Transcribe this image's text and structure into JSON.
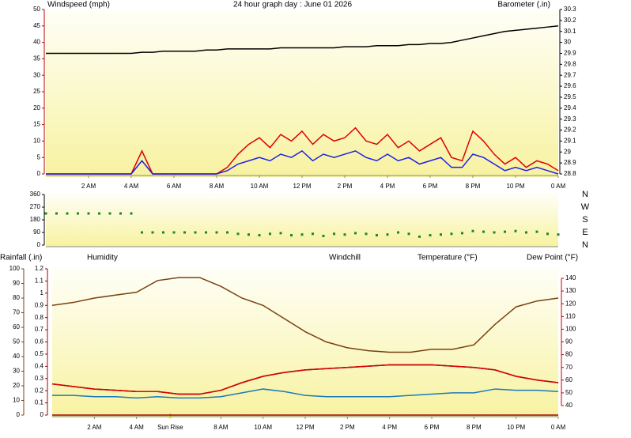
{
  "chart_data": [
    {
      "type": "line",
      "title": "24 hour graph day : June 01 2026",
      "xlim": [
        0,
        24
      ],
      "xticks": [
        {
          "value": 2,
          "label": "2 AM"
        },
        {
          "value": 4,
          "label": "4 AM"
        },
        {
          "value": 6,
          "label": "6 AM"
        },
        {
          "value": 8,
          "label": "8 AM"
        },
        {
          "value": 10,
          "label": "10 AM"
        },
        {
          "value": 12,
          "label": "12 PM"
        },
        {
          "value": 14,
          "label": "2 PM"
        },
        {
          "value": 16,
          "label": "4 PM"
        },
        {
          "value": 18,
          "label": "6 PM"
        },
        {
          "value": 20,
          "label": "8 PM"
        },
        {
          "value": 22,
          "label": "10 PM"
        },
        {
          "value": 24,
          "label": "0 AM"
        }
      ],
      "ylim": [
        0,
        50
      ],
      "yticks": [
        0,
        5,
        10,
        15,
        20,
        25,
        30,
        35,
        40,
        45,
        50
      ],
      "y2lim": [
        28.8,
        30.3
      ],
      "y2ticks": [
        28.8,
        28.9,
        29,
        29.1,
        29.2,
        29.3,
        29.4,
        29.5,
        29.6,
        29.7,
        29.8,
        29.9,
        30,
        30.1,
        30.2,
        30.3
      ],
      "x": [
        0,
        0.5,
        1,
        1.5,
        2,
        2.5,
        3,
        3.5,
        4,
        4.5,
        5,
        5.5,
        6,
        6.5,
        7,
        7.5,
        8,
        8.5,
        9,
        9.5,
        10,
        10.5,
        11,
        11.5,
        12,
        12.5,
        13,
        13.5,
        14,
        14.5,
        15,
        15.5,
        16,
        16.5,
        17,
        17.5,
        18,
        18.5,
        19,
        19.5,
        20,
        20.5,
        21,
        21.5,
        22,
        22.5,
        23,
        23.5,
        24
      ],
      "series": [
        {
          "name": "Windspeed (mph)",
          "color": "#e00000",
          "values": [
            0,
            0,
            0,
            0,
            0,
            0,
            0,
            0,
            0,
            7,
            0,
            0,
            0,
            0,
            0,
            0,
            0,
            2,
            6,
            9,
            11,
            8,
            12,
            10,
            13,
            9,
            12,
            10,
            11,
            14,
            10,
            9,
            12,
            8,
            10,
            7,
            9,
            11,
            5,
            4,
            13,
            10,
            6,
            3,
            5,
            2,
            4,
            3,
            1
          ]
        },
        {
          "color": "#2020e0",
          "values": [
            0,
            0,
            0,
            0,
            0,
            0,
            0,
            0,
            0,
            4,
            0,
            0,
            0,
            0,
            0,
            0,
            0,
            1,
            3,
            4,
            5,
            4,
            6,
            5,
            7,
            4,
            6,
            5,
            6,
            7,
            5,
            4,
            6,
            4,
            5,
            3,
            4,
            5,
            2,
            2,
            6,
            5,
            3,
            1,
            2,
            1,
            2,
            1,
            0
          ]
        },
        {
          "name": "Barometer (.in)",
          "color": "#000000",
          "axis": "y2",
          "values": [
            29.9,
            29.9,
            29.9,
            29.9,
            29.9,
            29.9,
            29.9,
            29.9,
            29.9,
            29.91,
            29.91,
            29.92,
            29.92,
            29.92,
            29.92,
            29.93,
            29.93,
            29.94,
            29.94,
            29.94,
            29.94,
            29.94,
            29.95,
            29.95,
            29.95,
            29.95,
            29.95,
            29.95,
            29.96,
            29.96,
            29.96,
            29.97,
            29.97,
            29.97,
            29.98,
            29.98,
            29.99,
            29.99,
            30.0,
            30.02,
            30.04,
            30.06,
            30.08,
            30.1,
            30.11,
            30.12,
            30.13,
            30.14,
            30.15
          ]
        }
      ]
    },
    {
      "type": "scatter",
      "xlim": [
        0,
        24
      ],
      "ylim": [
        0,
        360
      ],
      "yticks": [
        0,
        90,
        180,
        270,
        360
      ],
      "y2lim": [
        0,
        360
      ],
      "y2ticks": [
        {
          "value": 0,
          "label": "N"
        },
        {
          "value": 90,
          "label": "E"
        },
        {
          "value": 180,
          "label": "S"
        },
        {
          "value": 270,
          "label": "W"
        },
        {
          "value": 360,
          "label": "N"
        }
      ],
      "x": [
        0,
        0.5,
        1,
        1.5,
        2,
        2.5,
        3,
        3.5,
        4,
        4.5,
        5,
        5.5,
        6,
        6.5,
        7,
        7.5,
        8,
        8.5,
        9,
        9.5,
        10,
        10.5,
        11,
        11.5,
        12,
        12.5,
        13,
        13.5,
        14,
        14.5,
        15,
        15.5,
        16,
        16.5,
        17,
        17.5,
        18,
        18.5,
        19,
        19.5,
        20,
        20.5,
        21,
        21.5,
        22,
        22.5,
        23,
        23.5,
        24
      ],
      "series": [
        {
          "color": "#1a8a1a",
          "values": [
            225,
            225,
            225,
            225,
            225,
            225,
            225,
            225,
            225,
            90,
            90,
            90,
            90,
            90,
            90,
            90,
            90,
            90,
            80,
            75,
            70,
            80,
            85,
            70,
            75,
            80,
            65,
            80,
            75,
            85,
            80,
            70,
            75,
            90,
            80,
            60,
            70,
            75,
            80,
            85,
            100,
            95,
            90,
            95,
            100,
            90,
            95,
            80,
            75
          ]
        }
      ]
    },
    {
      "type": "line",
      "xlim": [
        0,
        24
      ],
      "xticks": [
        {
          "value": 2,
          "label": "2 AM"
        },
        {
          "value": 4,
          "label": "4 AM"
        },
        {
          "value": 8,
          "label": "8 AM"
        },
        {
          "value": 10,
          "label": "10 AM"
        },
        {
          "value": 12,
          "label": "12 PM"
        },
        {
          "value": 14,
          "label": "2 PM"
        },
        {
          "value": 16,
          "label": "4 PM"
        },
        {
          "value": 18,
          "label": "6 PM"
        },
        {
          "value": 20,
          "label": "8 PM"
        },
        {
          "value": 22,
          "label": "10 PM"
        },
        {
          "value": 24,
          "label": "0 AM"
        }
      ],
      "ylim": [
        0,
        100
      ],
      "yticks": [
        0,
        10,
        20,
        30,
        40,
        50,
        60,
        70,
        80,
        90,
        100
      ],
      "y3lim": [
        0,
        1.2
      ],
      "y3ticks": [
        0,
        0.1,
        0.2,
        0.3,
        0.4,
        0.5,
        0.6,
        0.7,
        0.8,
        0.9,
        1,
        1.1,
        1.2
      ],
      "y2lim": [
        40,
        140
      ],
      "y2ticks": [
        40,
        50,
        60,
        70,
        80,
        90,
        100,
        110,
        120,
        130,
        140
      ],
      "annotations": [
        {
          "x": 5.6,
          "label": "Sun Rise"
        }
      ],
      "x": [
        0,
        1,
        2,
        3,
        4,
        5,
        6,
        7,
        8,
        9,
        10,
        11,
        12,
        13,
        14,
        15,
        16,
        17,
        18,
        19,
        20,
        21,
        22,
        23,
        24
      ],
      "series": [
        {
          "name": "Rainfall (.in)",
          "color": "#a00000",
          "axis": "y3",
          "values": [
            0,
            0,
            0,
            0,
            0,
            0,
            0,
            0,
            0,
            0,
            0,
            0,
            0,
            0,
            0,
            0,
            0,
            0,
            0,
            0,
            0,
            0,
            0,
            0,
            0
          ]
        },
        {
          "name": "Humidity",
          "color": "#7a4010",
          "values": [
            75,
            77,
            80,
            82,
            84,
            92,
            94,
            94,
            88,
            80,
            75,
            66,
            57,
            50,
            46,
            44,
            43,
            43,
            45,
            45,
            48,
            62,
            74,
            78,
            80
          ]
        },
        {
          "name": "Windchill",
          "color": "#000000",
          "axis": "y2",
          "values": [
            57,
            55,
            53,
            52,
            51,
            51,
            49,
            49,
            52,
            58,
            63,
            66,
            68,
            69,
            70,
            71,
            72,
            72,
            72,
            71,
            70,
            68,
            63,
            60,
            58
          ]
        },
        {
          "name": "Temperature (°F)",
          "color": "#e00000",
          "axis": "y2",
          "values": [
            57,
            55,
            53,
            52,
            51,
            51,
            49,
            49,
            52,
            58,
            63,
            66,
            68,
            69,
            70,
            71,
            72,
            72,
            72,
            71,
            70,
            68,
            63,
            60,
            58
          ]
        },
        {
          "name": "Dew Point (°F)",
          "color": "#1a7ab8",
          "axis": "y2",
          "values": [
            48,
            48,
            47,
            47,
            46,
            47,
            46,
            46,
            47,
            50,
            53,
            51,
            48,
            47,
            47,
            47,
            47,
            48,
            49,
            50,
            50,
            53,
            52,
            52,
            51
          ]
        }
      ]
    }
  ]
}
